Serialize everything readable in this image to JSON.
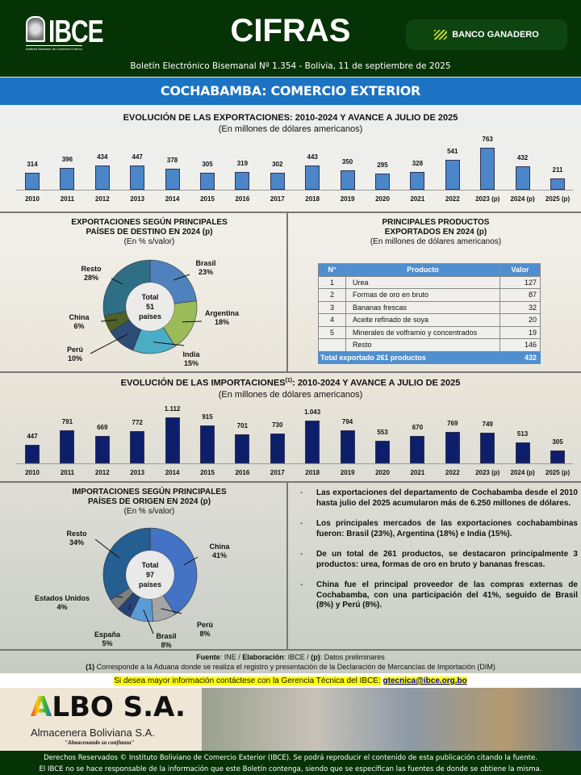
{
  "header": {
    "logo_text": "IBCE",
    "logo_subtext": "Instituto Boliviano de Comercio Exterior",
    "title": "CIFRAS",
    "sponsor": "BANCO GANADERO",
    "subtitle": "Boletín Electrónico Bisemanal Nº 1.354 - Bolivia, 11 de septiembre de 2025"
  },
  "band_title": "COCHABAMBA: COMERCIO EXTERIOR",
  "colors": {
    "header_green": "#063305",
    "band_blue": "#1c72c3",
    "export_bar": "#4a86c8",
    "import_bar": "#0d1f6b",
    "table_header": "#4f8fd0"
  },
  "chart_data": [
    {
      "type": "bar",
      "title": "EVOLUCIÓN DE LAS EXPORTACIONES: 2010-2024 Y AVANCE A JULIO DE 2025",
      "subtitle": "(En millones de dólares americanos)",
      "categories": [
        "2010",
        "2011",
        "2012",
        "2013",
        "2014",
        "2015",
        "2016",
        "2017",
        "2018",
        "2019",
        "2020",
        "2021",
        "2022",
        "2023 (p)",
        "2024 (p)",
        "2025 (p)"
      ],
      "values": [
        314,
        396,
        434,
        447,
        378,
        305,
        319,
        302,
        443,
        350,
        295,
        328,
        541,
        763,
        432,
        211
      ],
      "value_labels": [
        "314",
        "396",
        "434",
        "447",
        "378",
        "305",
        "319",
        "302",
        "443",
        "350",
        "295",
        "328",
        "541",
        "763",
        "432",
        "211"
      ]
    },
    {
      "type": "pie",
      "title": "EXPORTACIONES SEGÚN PRINCIPALES PAÍSES DE DESTINO EN 2024 (p)",
      "subtitle": "(En % s/valor)",
      "center": [
        "Total",
        "51",
        "países"
      ],
      "slices": [
        {
          "name": "Brasil",
          "value": 23,
          "label": "23%",
          "color": "#4f81bd"
        },
        {
          "name": "Argentina",
          "value": 18,
          "label": "18%",
          "color": "#9bbb59"
        },
        {
          "name": "India",
          "value": 15,
          "label": "15%",
          "color": "#4bacc6"
        },
        {
          "name": "Perú",
          "value": 10,
          "label": "10%",
          "color": "#2c4d75"
        },
        {
          "name": "China",
          "value": 6,
          "label": "6%",
          "color": "#4f6228"
        },
        {
          "name": "Resto",
          "value": 28,
          "label": "28%",
          "color": "#2e6f86"
        }
      ]
    },
    {
      "type": "bar",
      "title": "EVOLUCIÓN DE LAS IMPORTACIONES",
      "title_sup": "(1)",
      "title_rest": ": 2010-2024 Y AVANCE A JULIO DE 2025",
      "subtitle": "(En millones de dólares americanos)",
      "categories": [
        "2010",
        "2011",
        "2012",
        "2013",
        "2014",
        "2015",
        "2016",
        "2017",
        "2018",
        "2019",
        "2020",
        "2021",
        "2022",
        "2023 (p)",
        "2024 (p)",
        "2025 (p)"
      ],
      "values": [
        447,
        791,
        669,
        772,
        1112,
        915,
        701,
        730,
        1043,
        794,
        553,
        670,
        769,
        749,
        513,
        305
      ],
      "value_labels": [
        "447",
        "791",
        "669",
        "772",
        "1.112",
        "915",
        "701",
        "730",
        "1.043",
        "794",
        "553",
        "670",
        "769",
        "749",
        "513",
        "305"
      ]
    },
    {
      "type": "pie",
      "title": "IMPORTACIONES SEGÚN PRINCIPALES PAÍSES DE ORIGEN EN 2024 (p)",
      "subtitle": "(En % s/valor)",
      "center": [
        "Total",
        "97",
        "países"
      ],
      "slices": [
        {
          "name": "China",
          "value": 41,
          "label": "41%",
          "color": "#4472c4"
        },
        {
          "name": "Perú",
          "value": 8,
          "label": "8%",
          "color": "#a5a5a5"
        },
        {
          "name": "Brasil",
          "value": 8,
          "label": "8%",
          "color": "#5b9bd5"
        },
        {
          "name": "España",
          "value": 5,
          "label": "5%",
          "color": "#264478"
        },
        {
          "name": "Estados Unidos",
          "value": 4,
          "label": "4%",
          "color": "#7f7f7f"
        },
        {
          "name": "Resto",
          "value": 34,
          "label": "34%",
          "color": "#255e91"
        }
      ]
    },
    {
      "type": "table",
      "title": "PRINCIPALES PRODUCTOS EXPORTADOS EN 2024 (p)",
      "title_lines": [
        "PRINCIPALES PRODUCTOS",
        "EXPORTADOS EN 2024 (p)"
      ],
      "subtitle": "(En millones de dólares americanos)",
      "columns": [
        "N°",
        "Producto",
        "Valor"
      ],
      "rows": [
        [
          "1",
          "Urea",
          "127"
        ],
        [
          "2",
          "Formas de oro en bruto",
          "87"
        ],
        [
          "3",
          "Bananas frescas",
          "32"
        ],
        [
          "4",
          "Aceite refinado de soya",
          "20"
        ],
        [
          "5",
          "Minerales de volframio y concentrados",
          "19"
        ],
        [
          "",
          "Resto",
          "146"
        ]
      ],
      "total_label": "Total exportado 261 productos",
      "total_value": "432"
    }
  ],
  "exp_dest_title_lines": [
    "EXPORTACIONES SEGÚN PRINCIPALES",
    "PAÍSES DE DESTINO EN 2024 (p)"
  ],
  "imp_orig_title_lines": [
    "IMPORTACIONES SEGÚN PRINCIPALES",
    "PAÍSES DE ORIGEN EN 2024 (p)"
  ],
  "bullets": [
    "Las exportaciones del departamento de Cochabamba desde el 2010 hasta julio del 2025 acumularon más de 6.250 millones de dólares.",
    "Los principales mercados de las exportaciones cochabambinas fueron: Brasil (23%), Argentina (18%) e India (15%).",
    "De un total de 261 productos, se destacaron principalmente 3 productos:  urea, formas de oro en bruto y bananas frescas.",
    "China fue el principal proveedor de las compras externas de Cochabamba, con una participación  del 41%, seguido de Brasil (8%) y Perú (8%)."
  ],
  "source": {
    "fuente_label": "Fuente",
    "fuente": ": INE / ",
    "elab_label": "Elaboración",
    "elab": ": IBCE / ",
    "p_label": "(p)",
    "p_text": ": Datos preliminares",
    "note_label": "(1)",
    "note": " Corresponde a la Aduana donde se realiza el registro y presentación de la Declaración de Mercancías de Importación (DIM)"
  },
  "contact": {
    "text": "Si desea mayor información contáctese con la Gerencia Técnica del IBCE:",
    "email": "gtecnica@ibce.org.bo"
  },
  "ad": {
    "brand_a": "A",
    "brand_rest": "LBO S.A.",
    "name": "Almacenera Boliviana S.A.",
    "tagline": "\"Almacenando su confianza\""
  },
  "copyright": [
    "Derechos Reservados © Instituto Boliviano de Comercio Exterior (IBCE). Se podrá reproducir el contenido de esta publicación citando la fuente.",
    "El IBCE no se hace responsable de la información que este Boletín contenga, siendo que se especifican las fuentes de donde se obtiene la misma."
  ]
}
